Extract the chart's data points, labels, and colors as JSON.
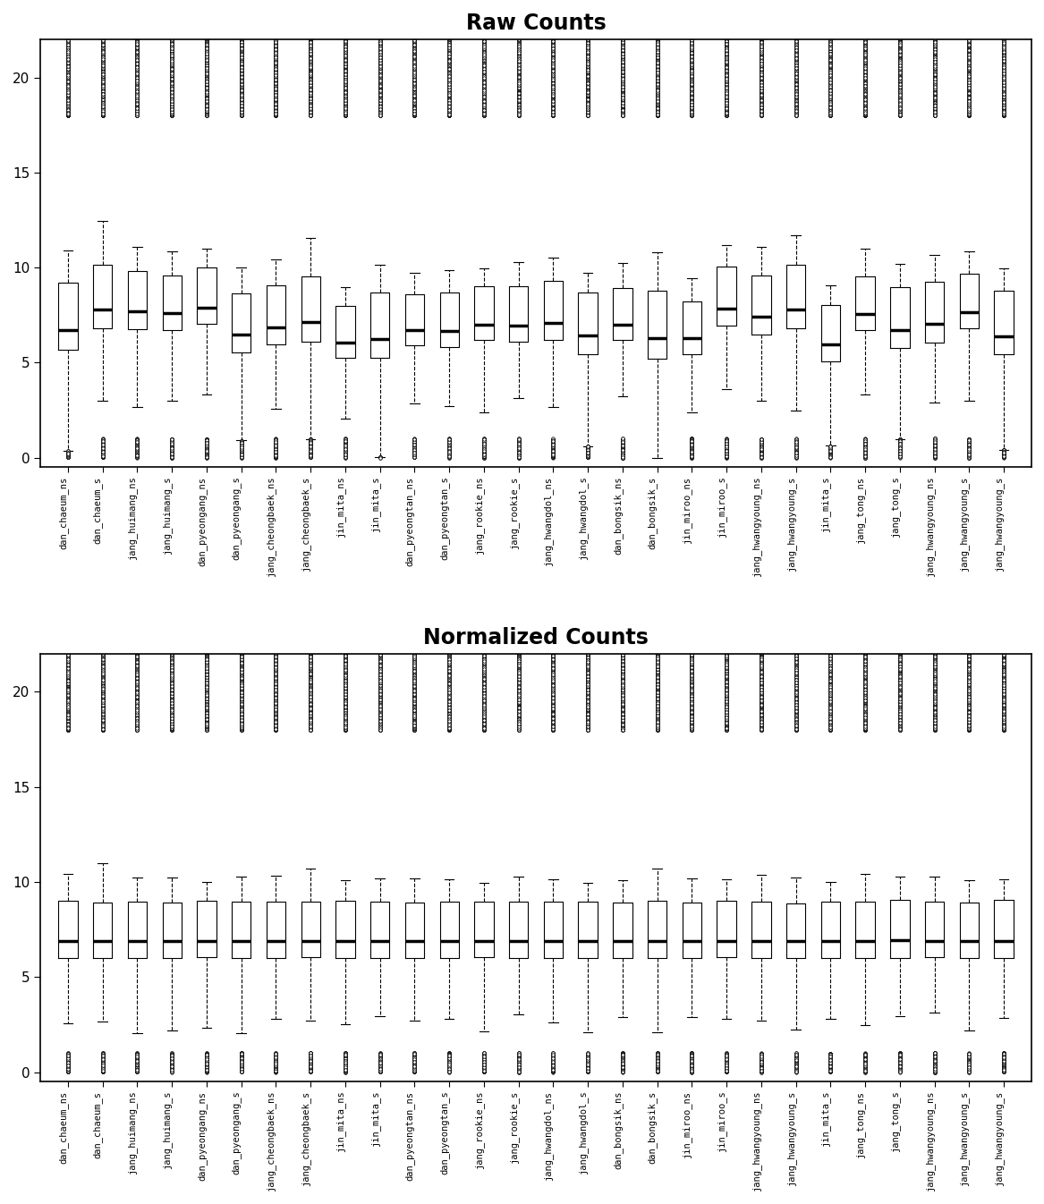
{
  "title_top": "Raw Counts",
  "title_bottom": "Normalized Counts",
  "ylim": [
    -0.5,
    22
  ],
  "yticks": [
    0,
    5,
    10,
    15,
    20
  ],
  "sample_labels_top": [
    "dan_chaeum_ns",
    "dan_chaeum_s",
    "jang_huimang_ns",
    "jang_huimang_s",
    "dan_pyeongang_ns",
    "dan_pyeongang_s",
    "jang_cheongbaek_ns",
    "jang_cheongbaek_s",
    "jin_mita_ns",
    "jin_mita_s",
    "dan_pyeongtan_ns",
    "dan_pyeongtan_s",
    "jang_rookie_ns",
    "jang_rookie_s",
    "jang_hwangdol_ns",
    "jang_hwangdol_s",
    "dan_bongsik_ns",
    "dan_bongsik_s",
    "jin_miroo_ns",
    "jin_miroo_s",
    "jang_hwangyoung_ns",
    "jang_hwangyoung_s",
    "jin_mita_s",
    "jang_tong_ns",
    "jang_tong_s",
    "jang_hwangyoung_ns",
    "jang_hwangyoung_s",
    "jang_hwangyoung_s"
  ],
  "sample_labels_bottom": [
    "dan_chaeum_ns",
    "dan_chaeum_s",
    "jang_huimang_ns",
    "jang_huimang_s",
    "dan_pyeongang_ns",
    "dan_pyeongang_s",
    "jang_cheongbaek_ns",
    "jang_cheongbaek_s",
    "jin_mita_ns",
    "jin_mita_s",
    "dan_pyeongtan_ns",
    "dan_pyeongtan_s",
    "jang_rookie_ns",
    "jang_rookie_s",
    "jang_hwangdol_ns",
    "jang_hwangdol_s",
    "dan_bongsik_ns",
    "dan_bongsik_s",
    "jin_miroo_ns",
    "jin_miroo_s",
    "jang_hwangyoung_ns",
    "jang_hwangyoung_s",
    "jin_mita_s",
    "jang_tong_ns",
    "jang_tong_s",
    "jang_hwangyoung_ns",
    "jang_hwangyoung_s",
    "jang_hwangyoung_s"
  ],
  "figsize": [
    11.67,
    13.46
  ],
  "dpi": 100
}
